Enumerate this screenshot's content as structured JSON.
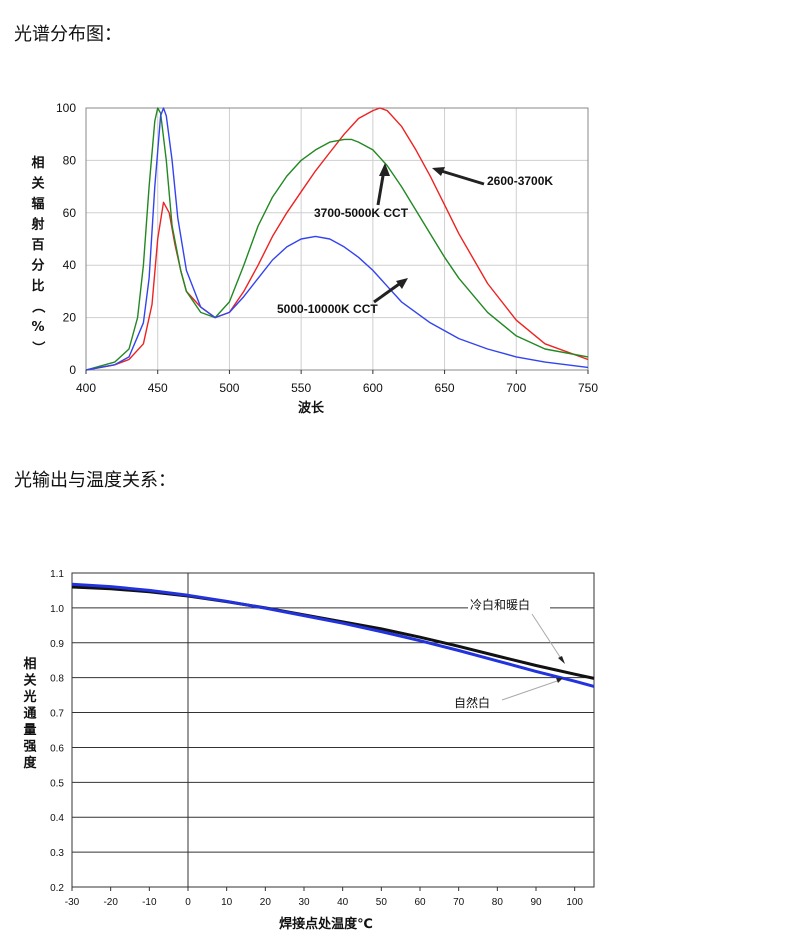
{
  "headings": {
    "spectrum": "光谱分布图：",
    "temperature": "光输出与温度关系："
  },
  "chart_data": [
    {
      "type": "line",
      "xlabel": "波长",
      "ylabel": "相关辐射百分比（%）",
      "xlim": [
        400,
        750
      ],
      "ylim": [
        0,
        100
      ],
      "x_ticks": [
        400,
        450,
        500,
        550,
        600,
        650,
        700,
        750
      ],
      "y_ticks": [
        0,
        20,
        40,
        60,
        80,
        100
      ],
      "grid": true,
      "series": [
        {
          "name": "2600-3700K",
          "color": "#ee2222",
          "x": [
            400,
            420,
            430,
            440,
            446,
            450,
            454,
            458,
            462,
            466,
            470,
            480,
            490,
            500,
            510,
            520,
            530,
            540,
            550,
            560,
            570,
            580,
            590,
            600,
            605,
            610,
            620,
            630,
            640,
            650,
            660,
            680,
            700,
            720,
            750
          ],
          "y": [
            0,
            2,
            4,
            10,
            25,
            50,
            64,
            60,
            48,
            38,
            30,
            24,
            20,
            22,
            30,
            40,
            51,
            60,
            68,
            76,
            83,
            90,
            96,
            99,
            100,
            99,
            93,
            84,
            74,
            63,
            52,
            33,
            19,
            10,
            4
          ]
        },
        {
          "name": "3700-5000K CCT",
          "color": "#228822",
          "x": [
            400,
            420,
            430,
            436,
            440,
            444,
            448,
            450,
            452,
            456,
            460,
            466,
            470,
            480,
            490,
            500,
            510,
            520,
            530,
            540,
            550,
            560,
            570,
            580,
            585,
            590,
            600,
            610,
            620,
            630,
            640,
            650,
            660,
            680,
            700,
            720,
            750
          ],
          "y": [
            0,
            3,
            8,
            20,
            40,
            70,
            95,
            100,
            98,
            80,
            55,
            38,
            30,
            22,
            20,
            26,
            40,
            55,
            66,
            74,
            80,
            84,
            87,
            88,
            88,
            87,
            84,
            78,
            70,
            61,
            52,
            43,
            35,
            22,
            13,
            8,
            5
          ]
        },
        {
          "name": "5000-10000K CCT",
          "color": "#3344ee",
          "x": [
            400,
            420,
            430,
            440,
            444,
            448,
            452,
            454,
            456,
            460,
            464,
            470,
            480,
            490,
            500,
            510,
            520,
            530,
            540,
            550,
            560,
            570,
            580,
            590,
            600,
            610,
            620,
            640,
            660,
            680,
            700,
            720,
            750
          ],
          "y": [
            0,
            2,
            5,
            18,
            35,
            70,
            97,
            100,
            97,
            80,
            58,
            38,
            24,
            20,
            22,
            28,
            35,
            42,
            47,
            50,
            51,
            50,
            47,
            43,
            38,
            32,
            26,
            18,
            12,
            8,
            5,
            3,
            1
          ]
        }
      ],
      "annotations": [
        "2600-3700K",
        "3700-5000K CCT",
        "5000-10000K CCT"
      ]
    },
    {
      "type": "line",
      "xlabel": "焊接点处温度℃",
      "ylabel": "相关光通量强度",
      "xlim": [
        -30,
        105
      ],
      "ylim": [
        0.2,
        1.1
      ],
      "x_ticks": [
        -30,
        -20,
        -10,
        0,
        10,
        20,
        30,
        40,
        50,
        60,
        70,
        80,
        90,
        100
      ],
      "y_ticks": [
        0.2,
        0.3,
        0.4,
        0.5,
        0.6,
        0.7,
        0.8,
        0.9,
        1.0,
        1.1
      ],
      "grid": true,
      "series": [
        {
          "name": "冷白和暖白",
          "color": "#111111",
          "x": [
            -30,
            -20,
            -10,
            0,
            10,
            20,
            30,
            40,
            50,
            60,
            70,
            80,
            90,
            100,
            105
          ],
          "y": [
            1.06,
            1.055,
            1.046,
            1.034,
            1.018,
            1.0,
            0.98,
            0.96,
            0.94,
            0.916,
            0.89,
            0.862,
            0.835,
            0.81,
            0.798
          ]
        },
        {
          "name": "自然白",
          "color": "#2233dd",
          "x": [
            -30,
            -20,
            -10,
            0,
            10,
            20,
            30,
            40,
            50,
            60,
            70,
            80,
            90,
            100,
            105
          ],
          "y": [
            1.068,
            1.061,
            1.05,
            1.036,
            1.019,
            0.999,
            0.978,
            0.956,
            0.932,
            0.906,
            0.878,
            0.848,
            0.818,
            0.79,
            0.775
          ]
        }
      ],
      "annotations": [
        "冷白和暖白",
        "自然白"
      ]
    }
  ]
}
